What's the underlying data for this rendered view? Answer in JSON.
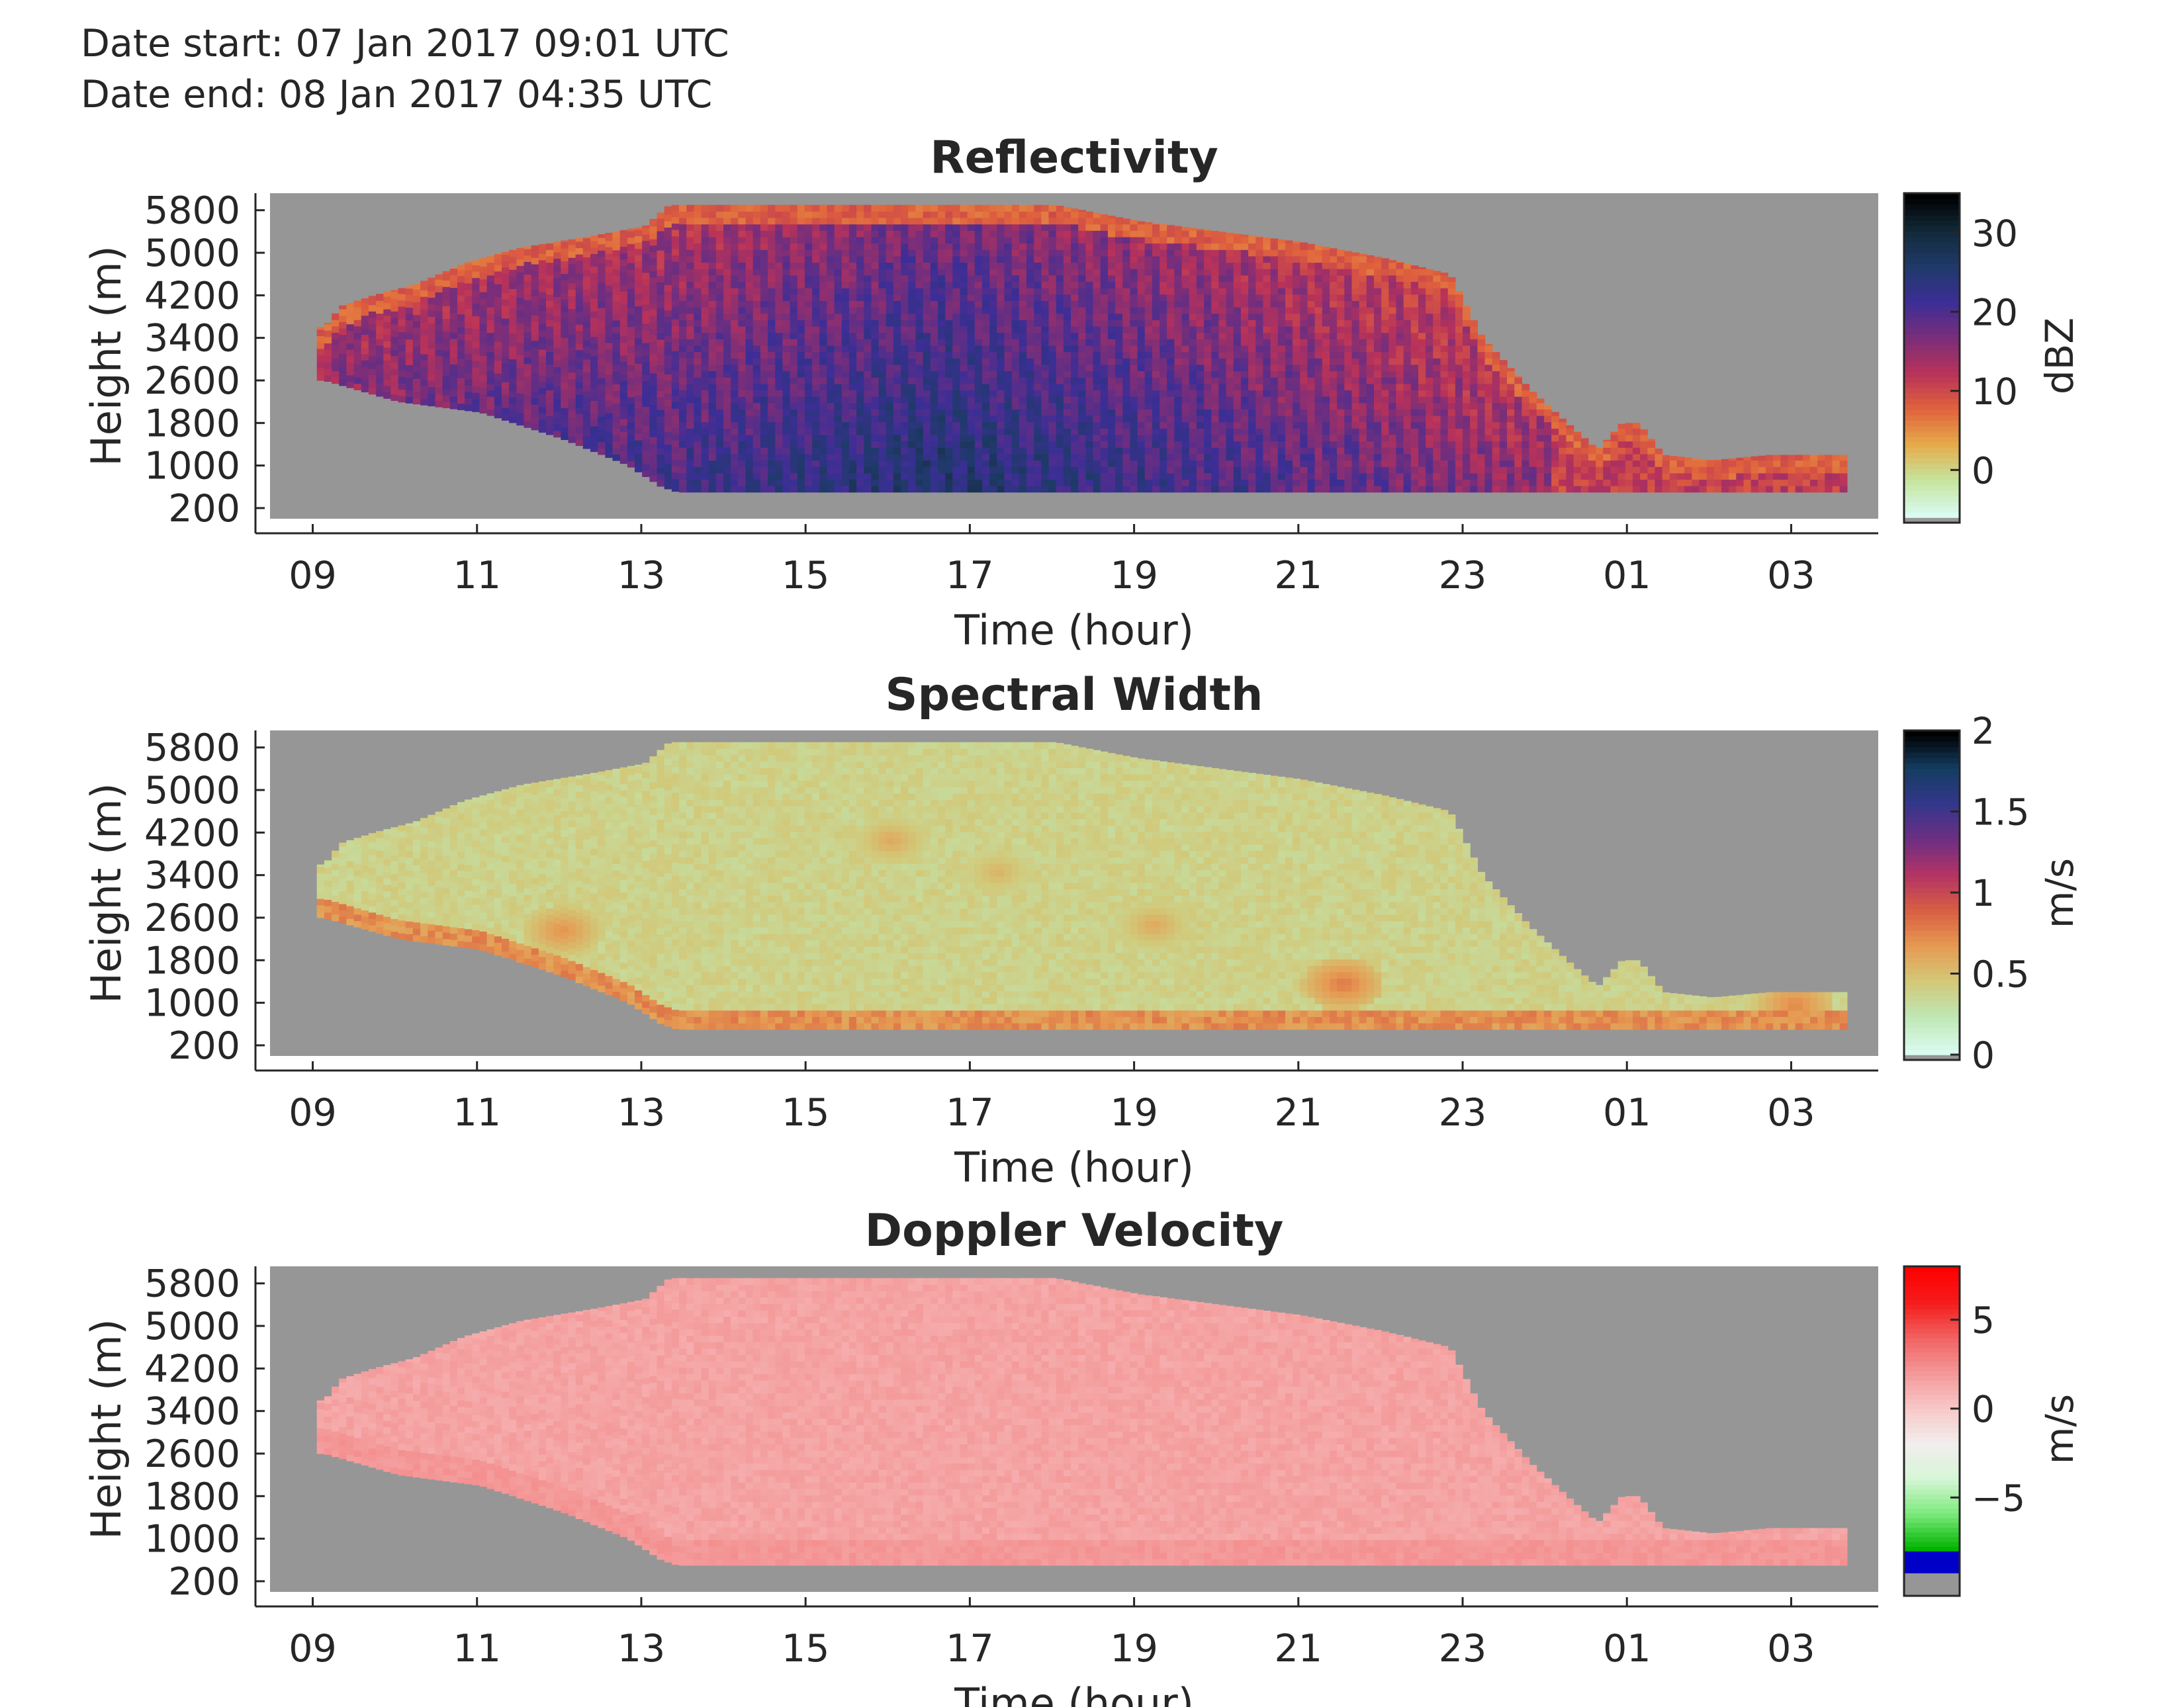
{
  "header": {
    "date_start": "Date start: 07 Jan 2017 09:01 UTC",
    "date_end": "Date end:  08 Jan 2017 04:35 UTC"
  },
  "colors": {
    "no_data": "#969696",
    "axis": "#262626"
  },
  "chart_data": [
    {
      "type": "heatmap",
      "title": "Reflectivity",
      "xlabel": "Time (hour)",
      "ylabel": "Height (m)",
      "x_ticks": [
        "09",
        "11",
        "13",
        "15",
        "17",
        "19",
        "21",
        "23",
        "01",
        "03"
      ],
      "y_ticks": [
        200,
        1000,
        1800,
        2600,
        3400,
        4200,
        5000,
        5800
      ],
      "colorbar": {
        "label": "dBZ",
        "ticks": [
          0,
          10,
          20,
          30
        ],
        "range": [
          -6,
          35
        ],
        "colors": [
          "#d9fbf0",
          "#c6e49c",
          "#e6aa4a",
          "#e0623c",
          "#b8325a",
          "#7a2e7a",
          "#3c2e96",
          "#1f3a6a",
          "#122a3a",
          "#000000"
        ]
      },
      "profile": {
        "top_km": [
          [
            9.1,
            3.6
          ],
          [
            9.3,
            4.0
          ],
          [
            9.7,
            4.2
          ],
          [
            10.2,
            4.4
          ],
          [
            10.8,
            4.8
          ],
          [
            11.5,
            5.1
          ],
          [
            12.3,
            5.3
          ],
          [
            13.0,
            5.5
          ],
          [
            13.3,
            5.9
          ],
          [
            14.5,
            5.9
          ],
          [
            15.8,
            5.9
          ],
          [
            17.0,
            5.9
          ],
          [
            18.0,
            5.9
          ],
          [
            19.0,
            5.6
          ],
          [
            20.0,
            5.4
          ],
          [
            21.0,
            5.2
          ],
          [
            22.0,
            4.9
          ],
          [
            22.8,
            4.6
          ],
          [
            23.2,
            3.4
          ],
          [
            23.8,
            2.4
          ],
          [
            24.3,
            1.7
          ],
          [
            24.6,
            1.3
          ],
          [
            24.9,
            1.8
          ],
          [
            25.1,
            1.8
          ],
          [
            25.4,
            1.2
          ],
          [
            26.0,
            1.1
          ],
          [
            26.7,
            1.2
          ],
          [
            27.6,
            1.2
          ]
        ],
        "bottom_km": [
          [
            9.1,
            2.6
          ],
          [
            10.0,
            2.2
          ],
          [
            11.0,
            2.0
          ],
          [
            12.0,
            1.5
          ],
          [
            12.8,
            1.0
          ],
          [
            13.2,
            0.6
          ],
          [
            13.4,
            0.5
          ],
          [
            27.6,
            0.5
          ]
        ],
        "streak_hours": [
          9.1,
          9.3,
          9.5,
          9.8,
          10.0,
          10.3,
          10.5,
          10.8,
          11.0,
          11.3,
          11.5,
          11.8,
          12.0,
          12.3,
          12.6,
          12.9,
          13.1,
          13.3,
          13.6,
          13.9,
          14.2,
          14.5,
          14.8,
          15.1,
          15.4,
          15.7,
          16.0,
          16.3,
          16.6,
          16.9,
          17.2,
          17.5,
          17.8,
          18.1,
          18.4,
          18.7,
          19.0,
          19.3,
          19.6,
          19.9,
          20.2,
          20.5,
          20.8,
          21.1,
          21.4,
          21.7,
          22.0,
          22.3,
          22.6,
          22.9,
          23.2,
          23.5,
          23.8
        ],
        "intensity_peak_hour": 16.6,
        "intensity_peak": 22,
        "intensity_low": 4
      }
    },
    {
      "type": "heatmap",
      "title": "Spectral Width",
      "xlabel": "Time (hour)",
      "ylabel": "Height (m)",
      "x_ticks": [
        "09",
        "11",
        "13",
        "15",
        "17",
        "19",
        "21",
        "23",
        "01",
        "03"
      ],
      "y_ticks": [
        200,
        1000,
        1800,
        2600,
        3400,
        4200,
        5000,
        5800
      ],
      "colorbar": {
        "label": "m/s",
        "ticks": [
          "0",
          "0.5",
          "1",
          "1.5",
          "2"
        ],
        "range": [
          0,
          2
        ],
        "colors": [
          "#d9fbf0",
          "#bfe7b4",
          "#d2c878",
          "#e69a52",
          "#d85e42",
          "#b43464",
          "#6e2e82",
          "#34378c",
          "#143e62",
          "#000000"
        ]
      },
      "profile": {
        "top_km": [
          [
            9.1,
            3.6
          ],
          [
            9.3,
            4.0
          ],
          [
            9.7,
            4.2
          ],
          [
            10.2,
            4.4
          ],
          [
            10.8,
            4.8
          ],
          [
            11.5,
            5.1
          ],
          [
            12.3,
            5.3
          ],
          [
            13.0,
            5.5
          ],
          [
            13.3,
            5.9
          ],
          [
            14.5,
            5.9
          ],
          [
            15.8,
            5.9
          ],
          [
            17.0,
            5.9
          ],
          [
            18.0,
            5.9
          ],
          [
            19.0,
            5.6
          ],
          [
            20.0,
            5.4
          ],
          [
            21.0,
            5.2
          ],
          [
            22.0,
            4.9
          ],
          [
            22.8,
            4.6
          ],
          [
            23.2,
            3.4
          ],
          [
            23.8,
            2.4
          ],
          [
            24.3,
            1.7
          ],
          [
            24.6,
            1.3
          ],
          [
            24.9,
            1.8
          ],
          [
            25.1,
            1.8
          ],
          [
            25.4,
            1.2
          ],
          [
            26.0,
            1.1
          ],
          [
            26.7,
            1.2
          ],
          [
            27.6,
            1.2
          ]
        ],
        "bottom_km": [
          [
            9.1,
            2.6
          ],
          [
            10.0,
            2.2
          ],
          [
            11.0,
            2.0
          ],
          [
            12.0,
            1.5
          ],
          [
            12.8,
            1.0
          ],
          [
            13.2,
            0.6
          ],
          [
            13.4,
            0.5
          ],
          [
            27.6,
            0.5
          ]
        ],
        "base_value": 0.32,
        "low_layer_value": 0.6,
        "hot_spots": [
          [
            12.0,
            2.3,
            0.7
          ],
          [
            21.5,
            1.3,
            0.8
          ],
          [
            27.0,
            0.9,
            0.75
          ],
          [
            16.0,
            4.0,
            0.6
          ],
          [
            17.3,
            3.4,
            0.55
          ],
          [
            19.2,
            2.4,
            0.6
          ]
        ]
      }
    },
    {
      "type": "heatmap",
      "title": "Doppler Velocity",
      "xlabel": "Time (hour)",
      "ylabel": "Height (m)",
      "x_ticks": [
        "09",
        "11",
        "13",
        "15",
        "17",
        "19",
        "21",
        "23",
        "01",
        "03"
      ],
      "y_ticks": [
        200,
        1000,
        1800,
        2600,
        3400,
        4200,
        5000,
        5800
      ],
      "colorbar": {
        "label": "m/s",
        "ticks": [
          "−5",
          "0",
          "5"
        ],
        "range": [
          -8,
          8
        ],
        "colors": [
          "#00b400",
          "#7cea7c",
          "#d6f6d6",
          "#f2eeee",
          "#f8c8c8",
          "#f49a9a",
          "#f26464",
          "#f41e1e",
          "#ff0000"
        ],
        "negative_band": "#0000c8",
        "bottom_band": "#969696"
      },
      "profile": {
        "top_km": [
          [
            9.1,
            3.6
          ],
          [
            9.3,
            4.0
          ],
          [
            9.7,
            4.2
          ],
          [
            10.2,
            4.4
          ],
          [
            10.8,
            4.8
          ],
          [
            11.5,
            5.1
          ],
          [
            12.3,
            5.3
          ],
          [
            13.0,
            5.5
          ],
          [
            13.3,
            5.9
          ],
          [
            14.5,
            5.9
          ],
          [
            15.8,
            5.9
          ],
          [
            17.0,
            5.9
          ],
          [
            18.0,
            5.9
          ],
          [
            19.0,
            5.6
          ],
          [
            20.0,
            5.4
          ],
          [
            21.0,
            5.2
          ],
          [
            22.0,
            4.9
          ],
          [
            22.8,
            4.6
          ],
          [
            23.2,
            3.4
          ],
          [
            23.8,
            2.4
          ],
          [
            24.3,
            1.7
          ],
          [
            24.6,
            1.3
          ],
          [
            24.9,
            1.8
          ],
          [
            25.1,
            1.8
          ],
          [
            25.4,
            1.2
          ],
          [
            26.0,
            1.1
          ],
          [
            26.7,
            1.2
          ],
          [
            27.6,
            1.2
          ]
        ],
        "bottom_km": [
          [
            9.1,
            2.6
          ],
          [
            10.0,
            2.2
          ],
          [
            11.0,
            2.0
          ],
          [
            12.0,
            1.5
          ],
          [
            12.8,
            1.0
          ],
          [
            13.2,
            0.6
          ],
          [
            13.4,
            0.5
          ],
          [
            27.6,
            0.5
          ]
        ],
        "base_value": 1.2,
        "low_layer_value": 1.8
      }
    }
  ]
}
